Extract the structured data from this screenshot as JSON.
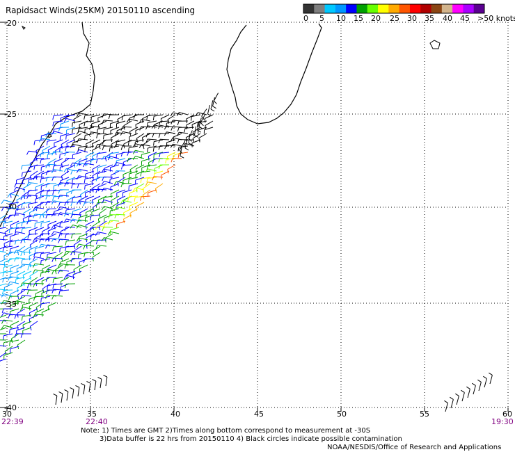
{
  "title": "Rapidsact Winds(25KM) 20150110 ascending",
  "legend": {
    "labels": [
      "0",
      "5",
      "10",
      "15",
      "20",
      "25",
      "30",
      "35",
      "40",
      "45",
      ">50 knots"
    ],
    "colors": [
      "#333333",
      "#7f7f7f",
      "#00c8ff",
      "#0096ff",
      "#0000ff",
      "#00a000",
      "#66ff00",
      "#ffff00",
      "#ffaa00",
      "#ff5500",
      "#ff0000",
      "#b00000",
      "#8b4513",
      "#d2b48c",
      "#ff00ff",
      "#aa00ff",
      "#5a0090"
    ]
  },
  "axes": {
    "lat_labels": [
      "-20",
      "-25",
      "-30",
      "-35",
      "-40"
    ],
    "lon_labels": [
      "30",
      "35",
      "40",
      "45",
      "50",
      "55",
      "60"
    ]
  },
  "times": {
    "left": "22:39",
    "middle": "22:40",
    "right": "19:30"
  },
  "notes": {
    "line1": "Note: 1) Times are GMT 2)Times along bottom correspond to measurement at -30S",
    "line2": "3)Data buffer is 22 hrs from 20150110 4) Black circles indicate possible contamination",
    "line3": "NOAA/NESDIS/Office of Research and Applications"
  }
}
